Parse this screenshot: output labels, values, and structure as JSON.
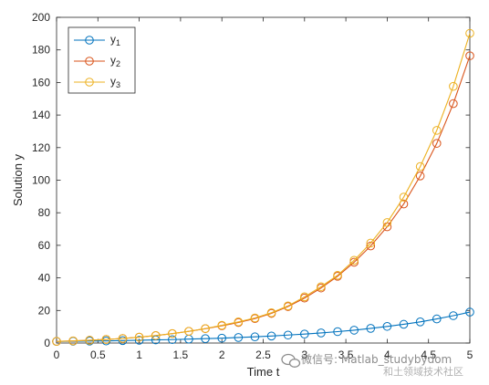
{
  "chart_data": {
    "type": "line",
    "title": "",
    "xlabel": "Time t",
    "ylabel": "Solution y",
    "xlim": [
      0,
      5
    ],
    "ylim": [
      0,
      200
    ],
    "xticks": [
      0,
      0.5,
      1,
      1.5,
      2,
      2.5,
      3,
      3.5,
      4,
      4.5,
      5
    ],
    "xtick_labels": [
      "0",
      "0.5",
      "1",
      "1.5",
      "2",
      "2.5",
      "3",
      "3.5",
      "4",
      "4.5",
      "5"
    ],
    "yticks": [
      0,
      20,
      40,
      60,
      80,
      100,
      120,
      140,
      160,
      180,
      200
    ],
    "ytick_labels": [
      "0",
      "20",
      "40",
      "60",
      "80",
      "100",
      "120",
      "140",
      "160",
      "180",
      "200"
    ],
    "grid": false,
    "legend_position": "top-left",
    "marker": "circle",
    "x": [
      0,
      0.2,
      0.4,
      0.6,
      0.8,
      1.0,
      1.2,
      1.4,
      1.6,
      1.8,
      2.0,
      2.2,
      2.4,
      2.6,
      2.8,
      3.0,
      3.2,
      3.4,
      3.6,
      3.8,
      4.0,
      4.2,
      4.4,
      4.6,
      4.8,
      5.0
    ],
    "series": [
      {
        "name": "y",
        "subscript": "1",
        "color": "#0072BD",
        "values": [
          1.0,
          1.1,
          1.2,
          1.3,
          1.5,
          1.7,
          1.9,
          2.1,
          2.4,
          2.7,
          3.0,
          3.4,
          3.8,
          4.3,
          4.9,
          5.5,
          6.2,
          7.0,
          7.9,
          9.0,
          10.2,
          11.5,
          13.0,
          14.8,
          16.8,
          19.0
        ]
      },
      {
        "name": "y",
        "subscript": "2",
        "color": "#D95319",
        "values": [
          1.0,
          1.3,
          1.7,
          2.2,
          2.8,
          3.6,
          4.6,
          5.8,
          7.2,
          8.8,
          10.6,
          12.6,
          15.0,
          18.2,
          22.4,
          27.6,
          33.8,
          41.0,
          49.6,
          59.6,
          71.4,
          85.4,
          102.6,
          122.6,
          147.0,
          176.4
        ]
      },
      {
        "name": "y",
        "subscript": "3",
        "color": "#EDB120",
        "values": [
          1.0,
          1.3,
          1.7,
          2.2,
          2.8,
          3.6,
          4.6,
          5.8,
          7.2,
          8.9,
          10.9,
          13.0,
          15.4,
          18.6,
          22.8,
          28.4,
          34.6,
          41.6,
          50.8,
          61.4,
          74.0,
          89.6,
          108.4,
          130.6,
          157.6,
          190.2
        ]
      }
    ]
  },
  "watermark": {
    "text": "微信号: Matlab_studybydom",
    "subtext": "和土领域技术社区"
  }
}
